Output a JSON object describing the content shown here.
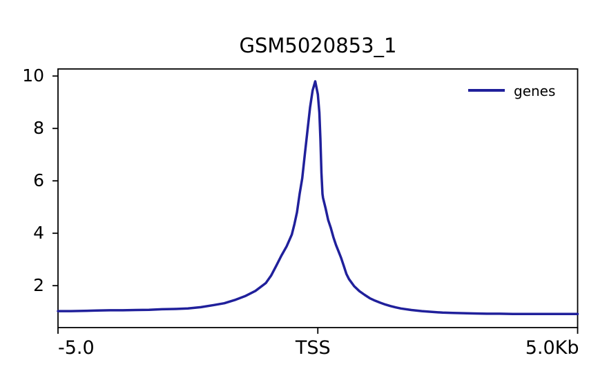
{
  "chart_data": {
    "type": "line",
    "title": "GSM5020853_1",
    "xlabel": "",
    "ylabel": "",
    "xlim": [
      -5.0,
      5.0
    ],
    "ylim": [
      0.4,
      10.27
    ],
    "grid": false,
    "legend_position": "upper right",
    "x_ticks": [
      {
        "value": -5.0,
        "label": "-5.0",
        "align": "left"
      },
      {
        "value": 0.0,
        "label": "TSS",
        "align": "center"
      },
      {
        "value": 5.0,
        "label": "5.0Kb",
        "align": "right"
      }
    ],
    "y_ticks": [
      {
        "value": 2,
        "label": "2"
      },
      {
        "value": 4,
        "label": "4"
      },
      {
        "value": 6,
        "label": "6"
      },
      {
        "value": 8,
        "label": "8"
      },
      {
        "value": 10,
        "label": "10"
      }
    ],
    "axis_color": "#000000",
    "series": [
      {
        "name": "genes",
        "color": "#20209B",
        "x": [
          -5.0,
          -4.75,
          -4.5,
          -4.25,
          -4.0,
          -3.75,
          -3.5,
          -3.25,
          -3.0,
          -2.75,
          -2.5,
          -2.25,
          -2.0,
          -1.8,
          -1.6,
          -1.4,
          -1.2,
          -1.0,
          -0.9,
          -0.8,
          -0.7,
          -0.6,
          -0.5,
          -0.45,
          -0.4,
          -0.35,
          -0.3,
          -0.25,
          -0.2,
          -0.15,
          -0.1,
          -0.05,
          0.0,
          0.03,
          0.05,
          0.07,
          0.09,
          0.1,
          0.15,
          0.2,
          0.25,
          0.3,
          0.35,
          0.4,
          0.45,
          0.5,
          0.55,
          0.6,
          0.7,
          0.8,
          0.9,
          1.0,
          1.1,
          1.2,
          1.3,
          1.4,
          1.5,
          1.6,
          1.8,
          2.0,
          2.2,
          2.4,
          2.6,
          2.8,
          3.0,
          3.25,
          3.5,
          3.75,
          4.0,
          4.25,
          4.5,
          4.75,
          5.0
        ],
        "y": [
          1.03,
          1.03,
          1.04,
          1.05,
          1.06,
          1.06,
          1.07,
          1.08,
          1.1,
          1.11,
          1.13,
          1.18,
          1.26,
          1.33,
          1.45,
          1.6,
          1.8,
          2.1,
          2.38,
          2.76,
          3.15,
          3.5,
          3.95,
          4.35,
          4.8,
          5.5,
          6.1,
          7.0,
          7.9,
          8.8,
          9.45,
          9.8,
          9.3,
          8.6,
          7.6,
          6.3,
          5.5,
          5.35,
          4.95,
          4.5,
          4.2,
          3.85,
          3.55,
          3.3,
          3.05,
          2.75,
          2.45,
          2.25,
          1.98,
          1.79,
          1.65,
          1.52,
          1.43,
          1.35,
          1.28,
          1.22,
          1.17,
          1.13,
          1.07,
          1.03,
          1.0,
          0.97,
          0.96,
          0.95,
          0.94,
          0.93,
          0.93,
          0.92,
          0.92,
          0.92,
          0.92,
          0.92,
          0.92
        ]
      }
    ]
  }
}
